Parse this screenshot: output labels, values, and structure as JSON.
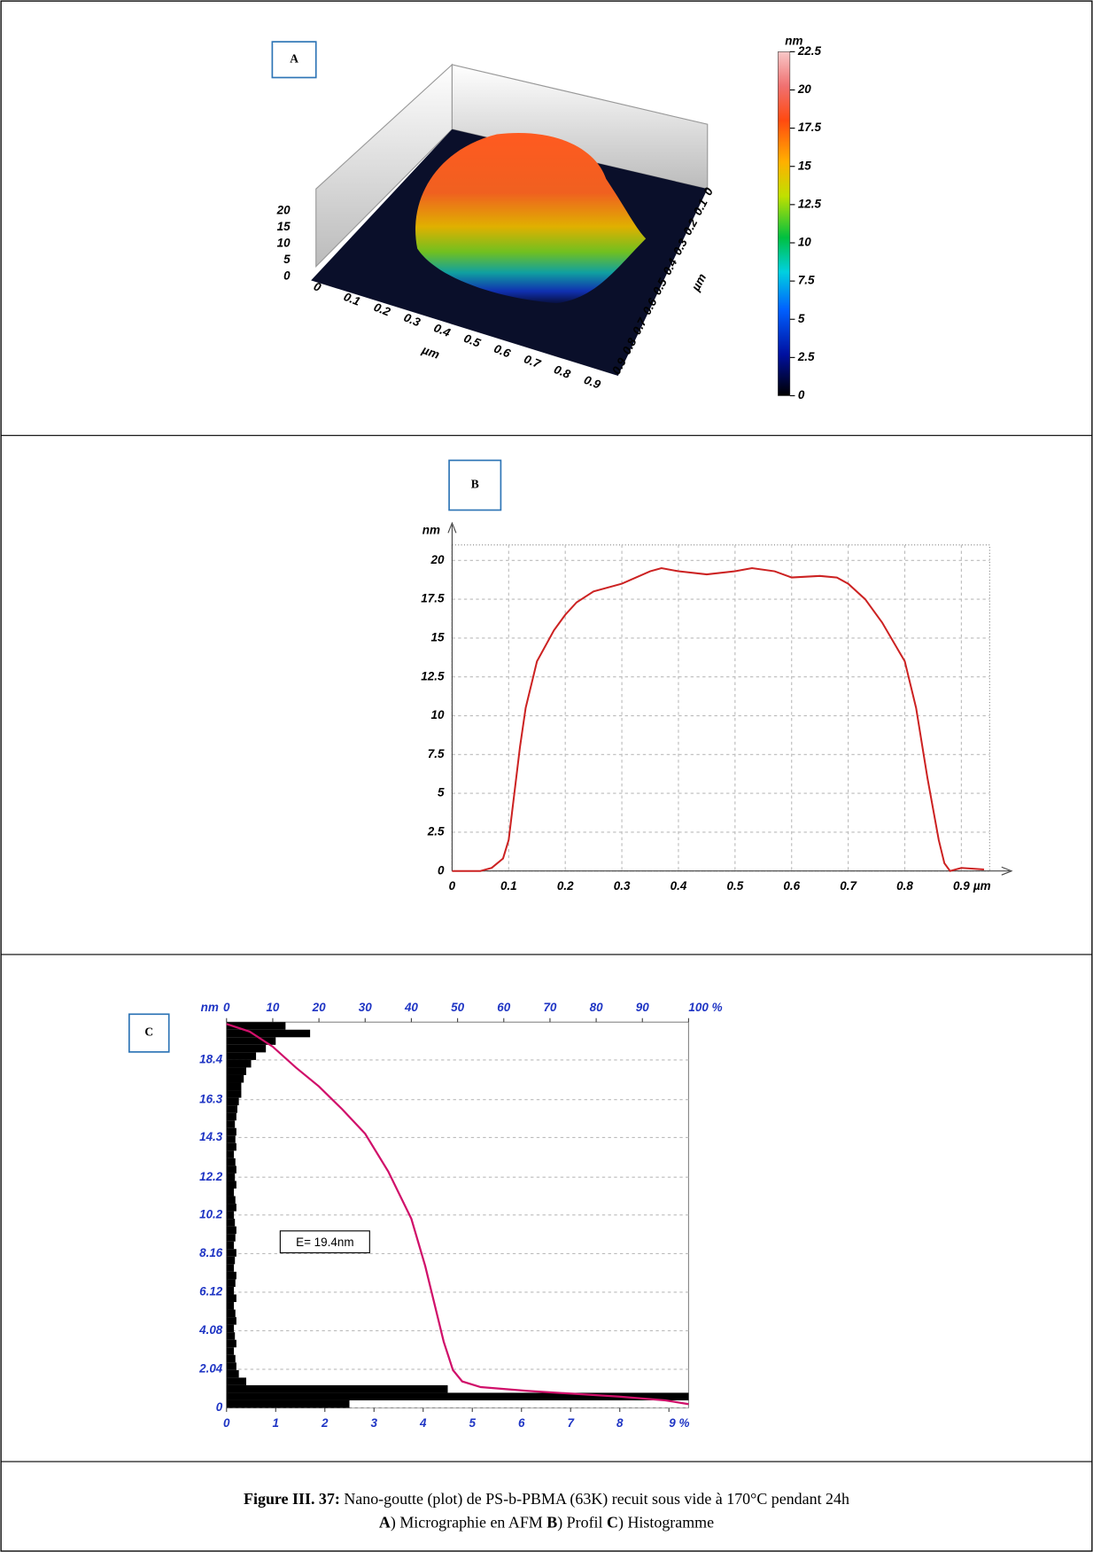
{
  "chart_data": [
    {
      "type": "surface3d",
      "panel_label": "A",
      "xticks": [
        0,
        0.1,
        0.2,
        0.3,
        0.4,
        0.5,
        0.6,
        0.7,
        0.8,
        0.9
      ],
      "xlim": [
        0,
        0.9
      ],
      "xlabel": "µm",
      "yticks": [
        0,
        0.1,
        0.2,
        0.3,
        0.4,
        0.5,
        0.6,
        0.7,
        0.8,
        0.9
      ],
      "ylim": [
        0,
        0.9
      ],
      "ylabel": "µm",
      "zticks": [
        0,
        5,
        10,
        15,
        20
      ],
      "zlim": [
        0,
        20
      ],
      "colorbar": {
        "unit": "nm",
        "lim": [
          0,
          22.5
        ],
        "ticks": [
          0,
          2.5,
          5,
          7.5,
          10,
          12.5,
          15,
          17.5,
          20,
          22.5
        ]
      }
    },
    {
      "type": "line",
      "panel_label": "B",
      "color": "#cc2222",
      "grid": true,
      "xlabel": "µm",
      "ylabel": "nm",
      "xlim": [
        0,
        0.95
      ],
      "xticks": [
        0,
        0.1,
        0.2,
        0.3,
        0.4,
        0.5,
        0.6,
        0.7,
        0.8,
        0.9
      ],
      "ylim": [
        0,
        21
      ],
      "yticks": [
        0,
        2.5,
        5,
        7.5,
        10,
        12.5,
        15,
        17.5,
        20
      ],
      "x": [
        0,
        0.05,
        0.07,
        0.09,
        0.1,
        0.11,
        0.12,
        0.13,
        0.15,
        0.18,
        0.2,
        0.22,
        0.25,
        0.3,
        0.35,
        0.37,
        0.4,
        0.45,
        0.5,
        0.53,
        0.57,
        0.6,
        0.65,
        0.68,
        0.7,
        0.73,
        0.76,
        0.8,
        0.82,
        0.84,
        0.86,
        0.87,
        0.88,
        0.9,
        0.94
      ],
      "values": [
        0,
        0,
        0.2,
        0.8,
        2,
        5,
        8,
        10.5,
        13.5,
        15.5,
        16.5,
        17.3,
        18,
        18.5,
        19.3,
        19.5,
        19.3,
        19.1,
        19.3,
        19.5,
        19.3,
        18.9,
        19,
        18.9,
        18.5,
        17.5,
        16,
        13.5,
        10.5,
        6,
        2,
        0.5,
        0,
        0.2,
        0.1
      ]
    },
    {
      "type": "histogram",
      "panel_label": "C",
      "color": "#000000",
      "tick_color": "#1f35c4",
      "grid": true,
      "ylabel": "nm",
      "annotation": "E= 19.4nm",
      "ylim": [
        0,
        20.4
      ],
      "yticks": [
        0,
        2.04,
        4.08,
        6.12,
        8.16,
        10.2,
        12.2,
        14.3,
        16.3,
        18.4
      ],
      "xlim": [
        0,
        9.4
      ],
      "xticks": [
        0,
        1,
        2,
        3,
        4,
        5,
        6,
        7,
        8,
        {
          "value": 9,
          "label": "9 %"
        }
      ],
      "x2lim": [
        0,
        100
      ],
      "x2ticks": [
        0,
        10,
        20,
        30,
        40,
        50,
        60,
        70,
        80,
        90,
        {
          "value": 100,
          "label": "100 %"
        }
      ],
      "bins": [
        0,
        0.4,
        0.8,
        1.2,
        1.6,
        2.0,
        2.4,
        2.8,
        3.2,
        3.6,
        4.0,
        4.4,
        4.8,
        5.2,
        5.6,
        6.0,
        6.4,
        6.8,
        7.2,
        7.6,
        8.0,
        8.4,
        8.8,
        9.2,
        9.6,
        10.0,
        10.4,
        10.8,
        11.2,
        11.6,
        12.0,
        12.4,
        12.8,
        13.2,
        13.6,
        14.0,
        14.4,
        14.8,
        15.2,
        15.6,
        16.0,
        16.4,
        16.8,
        17.2,
        17.6,
        18.0,
        18.4,
        18.8,
        19.2,
        19.6,
        20.0,
        20.4
      ],
      "counts": [
        2.5,
        9.4,
        4.5,
        0.4,
        0.25,
        0.2,
        0.18,
        0.15,
        0.2,
        0.17,
        0.15,
        0.2,
        0.18,
        0.15,
        0.2,
        0.15,
        0.18,
        0.2,
        0.15,
        0.17,
        0.2,
        0.15,
        0.18,
        0.2,
        0.17,
        0.15,
        0.2,
        0.18,
        0.15,
        0.2,
        0.17,
        0.2,
        0.18,
        0.15,
        0.2,
        0.18,
        0.2,
        0.17,
        0.2,
        0.22,
        0.25,
        0.3,
        0.3,
        0.35,
        0.4,
        0.5,
        0.6,
        0.8,
        1.0,
        1.7,
        1.2
      ],
      "cumulative": {
        "color": "#d0106a",
        "axis": "x2",
        "x": [
          0,
          5,
          10,
          15,
          20,
          25,
          30,
          35,
          40,
          43,
          45,
          47,
          49,
          51,
          55,
          65,
          75,
          85,
          95,
          100
        ],
        "y": [
          20.3,
          19.9,
          19.1,
          18.0,
          17.0,
          15.8,
          14.5,
          12.5,
          10.0,
          7.5,
          5.5,
          3.5,
          2.0,
          1.4,
          1.1,
          0.9,
          0.75,
          0.6,
          0.4,
          0.2
        ]
      }
    }
  ],
  "caption": {
    "label": "Figure III. 37:",
    "text": "Nano-goutte (plot) de PS-b-PBMA (63K) recuit sous vide à 170°C pendant 24h",
    "parts": [
      {
        "key": "A",
        "text": ") Micrographie en AFM"
      },
      {
        "key": "B",
        "text": ") Profil"
      },
      {
        "key": "C",
        "text": ") Histogramme"
      }
    ]
  }
}
